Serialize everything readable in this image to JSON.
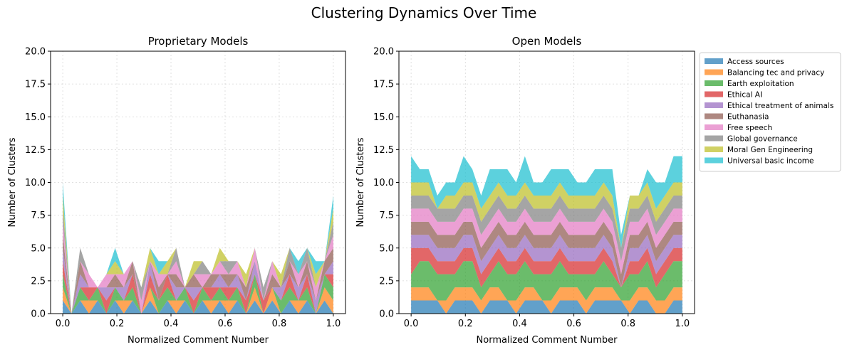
{
  "figure": {
    "title": "Clustering Dynamics Over Time"
  },
  "legend": {
    "placement": "outside-right",
    "entries": [
      {
        "label": "Access sources",
        "color": "#1f77b4"
      },
      {
        "label": "Balancing tec and privacy",
        "color": "#ff7f0e"
      },
      {
        "label": "Earth exploitation",
        "color": "#2ca02c"
      },
      {
        "label": "Ethical AI",
        "color": "#d62728"
      },
      {
        "label": "Ethical treatment of animals",
        "color": "#9467bd"
      },
      {
        "label": "Euthanasia",
        "color": "#8c564b"
      },
      {
        "label": "Free speech",
        "color": "#e377c2"
      },
      {
        "label": "Global governance",
        "color": "#7f7f7f"
      },
      {
        "label": "Moral Gen Engineering",
        "color": "#bcbd22"
      },
      {
        "label": "Universal basic income",
        "color": "#17becf"
      }
    ]
  },
  "chart_data": [
    {
      "type": "area",
      "stacked": true,
      "alpha": 0.7,
      "title": "Proprietary Models",
      "xlabel": "Normalized Comment Number",
      "ylabel": "Number of Clusters",
      "xlim": [
        -0.045,
        1.045
      ],
      "ylim": [
        0,
        20
      ],
      "xticks": [
        0.0,
        0.2,
        0.4,
        0.6,
        0.8,
        1.0
      ],
      "xtick_labels": [
        "0.0",
        "0.2",
        "0.4",
        "0.6",
        "0.8",
        "1.0"
      ],
      "yticks": [
        0,
        2.5,
        5,
        7.5,
        10,
        12.5,
        15,
        17.5,
        20
      ],
      "ytick_labels": [
        "0.0",
        "2.5",
        "5.0",
        "7.5",
        "10.0",
        "12.5",
        "15.0",
        "17.5",
        "20.0"
      ],
      "grid": true,
      "x": [
        0,
        0.0323,
        0.0645,
        0.0968,
        0.129,
        0.1613,
        0.1935,
        0.2258,
        0.2581,
        0.2903,
        0.3226,
        0.3548,
        0.3871,
        0.4194,
        0.4516,
        0.4839,
        0.5161,
        0.5484,
        0.5806,
        0.6129,
        0.6452,
        0.6774,
        0.7097,
        0.7419,
        0.7742,
        0.8065,
        0.8387,
        0.871,
        0.9032,
        0.9355,
        0.9677,
        1.0
      ],
      "series": [
        {
          "name": "Access sources",
          "values": [
            1,
            0,
            1,
            0,
            1,
            0,
            1,
            0,
            1,
            0,
            1,
            0,
            1,
            0,
            1,
            0,
            1,
            0,
            1,
            0,
            1,
            0,
            1,
            0,
            1,
            0,
            1,
            0,
            1,
            0,
            1,
            0
          ]
        },
        {
          "name": "Balancing tec and privacy",
          "values": [
            1,
            0,
            0,
            1,
            0,
            0,
            0,
            1,
            0,
            0,
            1,
            0,
            0,
            1,
            0,
            0,
            0,
            1,
            0,
            1,
            0,
            0,
            1,
            0,
            1,
            0,
            0,
            1,
            0,
            0,
            1,
            1
          ]
        },
        {
          "name": "Earth exploitation",
          "values": [
            1,
            0,
            1,
            0,
            1,
            0,
            1,
            0,
            1,
            0,
            0,
            1,
            1,
            0,
            1,
            0,
            1,
            0,
            1,
            0,
            1,
            0,
            1,
            0,
            0,
            1,
            1,
            0,
            1,
            0,
            1,
            1
          ]
        },
        {
          "name": "Ethical AI",
          "values": [
            1,
            0,
            0,
            1,
            0,
            1,
            0,
            0,
            1,
            0,
            1,
            0,
            1,
            0,
            0,
            1,
            0,
            1,
            0,
            1,
            0,
            1,
            0,
            1,
            0,
            0,
            1,
            0,
            1,
            0,
            0,
            1
          ]
        },
        {
          "name": "Ethical treatment of animals",
          "values": [
            1,
            0,
            1,
            0,
            0,
            1,
            0,
            1,
            0,
            0,
            1,
            0,
            0,
            1,
            0,
            1,
            0,
            0,
            1,
            0,
            1,
            0,
            1,
            0,
            0,
            1,
            0,
            1,
            0,
            1,
            0,
            1
          ]
        },
        {
          "name": "Euthanasia",
          "values": [
            1,
            0,
            1,
            0,
            0,
            0,
            1,
            0,
            1,
            0,
            0,
            1,
            0,
            1,
            0,
            1,
            0,
            1,
            0,
            1,
            0,
            1,
            0,
            0,
            1,
            0,
            1,
            0,
            1,
            0,
            1,
            1
          ]
        },
        {
          "name": "Free speech",
          "values": [
            1,
            0,
            0,
            1,
            0,
            1,
            0,
            1,
            0,
            1,
            0,
            1,
            0,
            1,
            0,
            0,
            1,
            0,
            1,
            0,
            1,
            0,
            1,
            0,
            1,
            0,
            0,
            1,
            0,
            1,
            0,
            1
          ]
        },
        {
          "name": "Global governance",
          "values": [
            1,
            0,
            1,
            0,
            0,
            0,
            0,
            0,
            0,
            1,
            0,
            0,
            0,
            1,
            0,
            0,
            1,
            0,
            0,
            1,
            0,
            0,
            0,
            1,
            0,
            0,
            1,
            0,
            1,
            0,
            0,
            1
          ]
        },
        {
          "name": "Moral Gen Engineering",
          "values": [
            1,
            0,
            0,
            0,
            0,
            0,
            1,
            0,
            0,
            0,
            1,
            0,
            1,
            0,
            0,
            1,
            0,
            0,
            1,
            0,
            0,
            1,
            0,
            0,
            0,
            1,
            0,
            0,
            0,
            1,
            0,
            1
          ]
        },
        {
          "name": "Universal basic income",
          "values": [
            1,
            0,
            0,
            0,
            0,
            0,
            1,
            0,
            0,
            0,
            0,
            1,
            0,
            0,
            0,
            0,
            0,
            0,
            0,
            0,
            0,
            0,
            0,
            0,
            0,
            0,
            0,
            1,
            0,
            1,
            0,
            1
          ]
        }
      ]
    },
    {
      "type": "area",
      "stacked": true,
      "alpha": 0.7,
      "title": "Open Models",
      "xlabel": "Normalized Comment Number",
      "ylabel": "Number of Clusters",
      "xlim": [
        -0.045,
        1.045
      ],
      "ylim": [
        0,
        20
      ],
      "xticks": [
        0.0,
        0.2,
        0.4,
        0.6,
        0.8,
        1.0
      ],
      "xtick_labels": [
        "0.0",
        "0.2",
        "0.4",
        "0.6",
        "0.8",
        "1.0"
      ],
      "yticks": [
        0,
        2.5,
        5,
        7.5,
        10,
        12.5,
        15,
        17.5,
        20
      ],
      "ytick_labels": [
        "0.0",
        "2.5",
        "5.0",
        "7.5",
        "10.0",
        "12.5",
        "15.0",
        "17.5",
        "20.0"
      ],
      "grid": true,
      "x": [
        0,
        0.0323,
        0.0645,
        0.0968,
        0.129,
        0.1613,
        0.1935,
        0.2258,
        0.2581,
        0.2903,
        0.3226,
        0.3548,
        0.3871,
        0.4194,
        0.4516,
        0.4839,
        0.5161,
        0.5484,
        0.5806,
        0.6129,
        0.6452,
        0.6774,
        0.7097,
        0.7419,
        0.7742,
        0.8065,
        0.8387,
        0.871,
        0.9032,
        0.9355,
        0.9677,
        1.0
      ],
      "series": [
        {
          "name": "Access sources",
          "values": [
            1,
            1,
            1,
            1,
            0,
            1,
            1,
            1,
            0,
            1,
            1,
            1,
            0,
            1,
            1,
            1,
            0,
            1,
            1,
            1,
            0,
            1,
            1,
            1,
            1,
            0,
            1,
            1,
            0,
            0,
            1,
            1
          ]
        },
        {
          "name": "Balancing tec and privacy",
          "values": [
            1,
            1,
            1,
            0,
            1,
            1,
            1,
            1,
            1,
            1,
            1,
            0,
            1,
            1,
            1,
            0,
            1,
            1,
            1,
            1,
            1,
            1,
            1,
            1,
            0,
            1,
            1,
            1,
            1,
            1,
            1,
            1
          ]
        },
        {
          "name": "Earth exploitation",
          "values": [
            1,
            2,
            2,
            2,
            2,
            1,
            2,
            2,
            1,
            1,
            2,
            2,
            2,
            2,
            1,
            2,
            2,
            2,
            1,
            1,
            2,
            1,
            2,
            1,
            1,
            2,
            1,
            2,
            1,
            2,
            2,
            2
          ]
        },
        {
          "name": "Ethical AI",
          "values": [
            2,
            1,
            1,
            1,
            1,
            1,
            1,
            1,
            1,
            1,
            1,
            1,
            1,
            1,
            1,
            1,
            1,
            1,
            1,
            1,
            1,
            1,
            1,
            1,
            0,
            1,
            1,
            1,
            1,
            1,
            1,
            1
          ]
        },
        {
          "name": "Ethical treatment of animals",
          "values": [
            1,
            1,
            1,
            1,
            1,
            1,
            1,
            1,
            1,
            1,
            1,
            1,
            1,
            1,
            1,
            1,
            1,
            1,
            1,
            1,
            1,
            1,
            1,
            1,
            0,
            1,
            1,
            1,
            1,
            1,
            1,
            1
          ]
        },
        {
          "name": "Euthanasia",
          "values": [
            1,
            1,
            1,
            1,
            1,
            1,
            1,
            1,
            1,
            1,
            1,
            1,
            1,
            1,
            1,
            1,
            1,
            1,
            1,
            1,
            1,
            1,
            1,
            1,
            1,
            1,
            1,
            1,
            1,
            1,
            1,
            1
          ]
        },
        {
          "name": "Free speech",
          "values": [
            1,
            1,
            1,
            1,
            1,
            1,
            1,
            1,
            1,
            1,
            1,
            1,
            1,
            1,
            1,
            1,
            1,
            1,
            1,
            1,
            1,
            1,
            1,
            1,
            1,
            1,
            1,
            1,
            1,
            1,
            1,
            1
          ]
        },
        {
          "name": "Global governance",
          "values": [
            1,
            1,
            1,
            1,
            1,
            1,
            1,
            1,
            1,
            1,
            1,
            1,
            1,
            1,
            1,
            1,
            1,
            1,
            1,
            1,
            1,
            1,
            1,
            1,
            1,
            1,
            1,
            1,
            1,
            1,
            1,
            1
          ]
        },
        {
          "name": "Moral Gen Engineering",
          "values": [
            1,
            1,
            1,
            0,
            1,
            1,
            1,
            1,
            1,
            1,
            1,
            1,
            1,
            1,
            1,
            1,
            1,
            1,
            1,
            1,
            1,
            1,
            1,
            1,
            0,
            1,
            1,
            1,
            1,
            1,
            1,
            1
          ]
        },
        {
          "name": "Universal basic income",
          "values": [
            2,
            1,
            1,
            1,
            1,
            1,
            2,
            1,
            1,
            2,
            1,
            2,
            1,
            2,
            1,
            1,
            2,
            1,
            2,
            1,
            1,
            2,
            1,
            2,
            1,
            0,
            0,
            1,
            2,
            1,
            2,
            2
          ]
        }
      ]
    }
  ]
}
